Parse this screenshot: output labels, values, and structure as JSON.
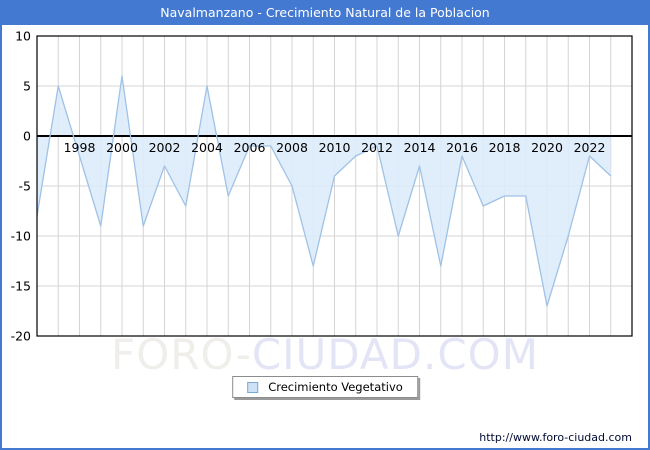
{
  "header": {
    "title": "Navalmanzano - Crecimiento Natural de la Poblacion",
    "bar_color": "#4479d2"
  },
  "chart_data": {
    "type": "area",
    "title": "Navalmanzano - Crecimiento Natural de la Poblacion",
    "x": [
      1996,
      1997,
      1998,
      1999,
      2000,
      2001,
      2002,
      2003,
      2004,
      2005,
      2006,
      2007,
      2008,
      2009,
      2010,
      2011,
      2012,
      2013,
      2014,
      2015,
      2016,
      2017,
      2018,
      2019,
      2020,
      2021,
      2022,
      2023
    ],
    "series": [
      {
        "name": "Crecimiento Vegetativo",
        "values": [
          -8,
          5,
          -2,
          -9,
          6,
          -9,
          -3,
          -7,
          5,
          -6,
          -1,
          -1,
          -5,
          -13,
          -4,
          -2,
          -1,
          -10,
          -3,
          -13,
          -2,
          -7,
          -6,
          -6,
          -17,
          -10,
          -2,
          -4
        ]
      }
    ],
    "xlim": [
      1996,
      2024
    ],
    "ylim": [
      -20,
      10
    ],
    "y_ticks": [
      10,
      5,
      0,
      -5,
      -10,
      -15,
      -20
    ],
    "x_tick_years": [
      1998,
      2000,
      2002,
      2004,
      2006,
      2008,
      2010,
      2012,
      2014,
      2016,
      2018,
      2020,
      2022
    ],
    "grid": true,
    "legend_position": "bottom-center",
    "line_color": "#9fc2e7",
    "fill_color": "#ddebfa",
    "grid_color": "#d4d4d4",
    "zero_line_color": "#000000",
    "axis_border_color": "#000000"
  },
  "legend": {
    "label": "Crecimiento Vegetativo",
    "marker_fill": "#cfe2f5",
    "marker_border": "#7aa7d4"
  },
  "watermark": {
    "part1": "FORO-",
    "part2": "CIUDAD.COM",
    "part1_color": "#efeeea",
    "part2_color": "#e4e4f7"
  },
  "footer": {
    "url": "http://www.foro-ciudad.com"
  }
}
